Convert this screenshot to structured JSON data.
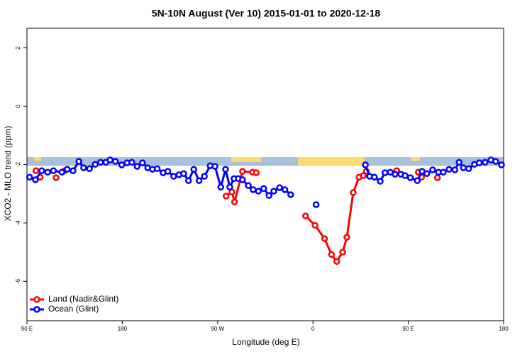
{
  "chart_data": {
    "type": "line",
    "title": "5N-10N August (Ver 10)   2015-01-01 to 2020-12-18",
    "x_label": "Longitude (deg E)",
    "y_label": "XCO2 - MLO trend (ppm)",
    "xlim": [
      90,
      540
    ],
    "xticks": [
      {
        "value": 90,
        "label": "90 E"
      },
      180,
      {
        "value": 270,
        "label": "90 W"
      },
      {
        "value": 360,
        "label": "0"
      },
      {
        "value": 450,
        "label": "90 E"
      },
      {
        "value": 540,
        "label": "180"
      }
    ],
    "ylim": [
      -7.35,
      2.67
    ],
    "yticks": [
      -6,
      -4,
      -2,
      0,
      2
    ],
    "grid": false,
    "legend": "bottom-left",
    "series": [
      {
        "name": "Land (Nadir&Glint)",
        "color": "#ff0000",
        "x": [
          98.5,
          null,
          102.5,
          null,
          117.5,
          null,
          125.5,
          null,
          278,
          283.5,
          286,
          293.5,
          303,
          306.5,
          null,
          353,
          362,
          371,
          377.5,
          382.5,
          388,
          392,
          398,
          403.5,
          407.5,
          410.5,
          null,
          439,
          null,
          459.5,
          null,
          462.5,
          null,
          477.5
        ],
        "values": [
          -2.21,
          null,
          -2.43,
          null,
          -2.45,
          null,
          -2.21,
          null,
          -3.08,
          -2.94,
          -3.28,
          -2.23,
          -2.26,
          -2.28,
          null,
          -3.76,
          -4.08,
          -4.54,
          -5.08,
          -5.32,
          -5.0,
          -4.49,
          -2.96,
          -2.43,
          -2.38,
          -2.23,
          null,
          -2.21,
          null,
          -2.26,
          null,
          -2.43,
          null,
          -2.45
        ]
      },
      {
        "name": "Ocean (Glint)",
        "color": "#0000ff",
        "x": [
          92.5,
          98,
          104,
          109.5,
          115,
          123,
          128,
          133.5,
          139,
          143.5,
          149,
          154.5,
          159.5,
          164.5,
          168.5,
          173.5,
          179.5,
          184.5,
          189,
          194,
          199,
          204,
          208.5,
          213,
          218.5,
          223,
          228.5,
          233.5,
          238,
          242.5,
          247.5,
          252.5,
          257.5,
          263,
          267.5,
          273,
          277.5,
          281.5,
          285.5,
          289.5,
          293.5,
          299,
          303.5,
          308.5,
          313.5,
          318.5,
          323,
          328.5,
          333.5,
          339,
          null,
          363,
          null,
          409.5,
          413.5,
          418,
          423.5,
          428,
          433,
          437.5,
          443,
          447,
          452,
          458.5,
          463,
          467.5,
          473,
          478.5,
          483,
          488.5,
          494,
          498,
          502,
          507,
          512.5,
          517,
          522.5,
          528,
          532.5,
          538
        ],
        "values": [
          -2.43,
          -2.52,
          -2.21,
          -2.26,
          -2.21,
          -2.26,
          -2.16,
          -2.21,
          -1.89,
          -2.11,
          -2.14,
          -1.99,
          -1.92,
          -1.92,
          -1.84,
          -1.89,
          -2.01,
          -1.94,
          -1.92,
          -2.06,
          -1.94,
          -2.11,
          -2.16,
          -2.14,
          -2.28,
          -2.23,
          -2.4,
          -2.35,
          -2.31,
          -2.55,
          -2.16,
          -2.55,
          -2.4,
          -2.04,
          -2.06,
          -2.77,
          -2.16,
          -2.77,
          -2.48,
          -2.48,
          -2.52,
          -2.72,
          -2.86,
          -2.91,
          -2.82,
          -3.06,
          -2.91,
          -2.79,
          -2.86,
          -3.03,
          null,
          -3.37,
          null,
          -2.01,
          -2.4,
          -2.43,
          -2.57,
          -2.28,
          -2.26,
          -2.33,
          -2.33,
          -2.38,
          -2.45,
          -2.55,
          -2.23,
          -2.31,
          -2.18,
          -2.26,
          -2.26,
          -2.16,
          -2.18,
          -1.92,
          -2.11,
          -2.14,
          -1.99,
          -1.94,
          -1.92,
          -1.84,
          -1.89,
          -2.01
        ]
      }
    ]
  }
}
